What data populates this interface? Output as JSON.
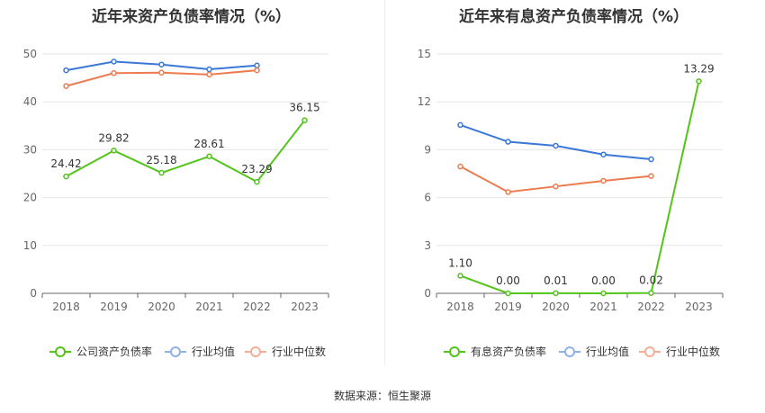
{
  "footer": "数据来源：恒生聚源",
  "chart_data": [
    {
      "type": "line",
      "title": "近年来资产负债率情况（%）",
      "categories": [
        "2018",
        "2019",
        "2020",
        "2021",
        "2022",
        "2023"
      ],
      "ylim": [
        0,
        50
      ],
      "yticks": [
        0,
        10,
        20,
        30,
        40,
        50
      ],
      "grid": true,
      "legend_position": "bottom",
      "series": [
        {
          "name": "公司资产负债率",
          "color": "#52c41a",
          "values": [
            24.42,
            29.82,
            25.18,
            28.61,
            23.29,
            36.15
          ],
          "labels": [
            "24.42",
            "29.82",
            "25.18",
            "28.61",
            "23.29",
            "36.15"
          ]
        },
        {
          "name": "行业均值",
          "color": "#3a78d8",
          "legend_color": "#8fb1ea",
          "values": [
            46.6,
            48.4,
            47.8,
            46.8,
            47.6,
            null
          ]
        },
        {
          "name": "行业中位数",
          "color": "#ee7b4f",
          "legend_color": "#f4ae95",
          "values": [
            43.3,
            46.0,
            46.1,
            45.7,
            46.6,
            null
          ]
        }
      ]
    },
    {
      "type": "line",
      "title": "近年来有息资产负债率情况（%）",
      "categories": [
        "2018",
        "2019",
        "2020",
        "2021",
        "2022",
        "2023"
      ],
      "ylim": [
        0,
        15
      ],
      "yticks": [
        0,
        3,
        6,
        9,
        12,
        15
      ],
      "grid": true,
      "legend_position": "bottom",
      "series": [
        {
          "name": "有息资产负债率",
          "color": "#52c41a",
          "values": [
            1.1,
            0.0,
            0.01,
            0.0,
            0.02,
            13.29
          ],
          "labels": [
            "1.10",
            "0.00",
            "0.01",
            "0.00",
            "0.02",
            "13.29"
          ]
        },
        {
          "name": "行业均值",
          "color": "#3a78d8",
          "legend_color": "#8fb1ea",
          "values": [
            10.55,
            9.5,
            9.25,
            8.7,
            8.4,
            null
          ]
        },
        {
          "name": "行业中位数",
          "color": "#ee7b4f",
          "legend_color": "#f4ae95",
          "values": [
            7.95,
            6.35,
            6.7,
            7.05,
            7.35,
            null
          ]
        }
      ]
    }
  ]
}
